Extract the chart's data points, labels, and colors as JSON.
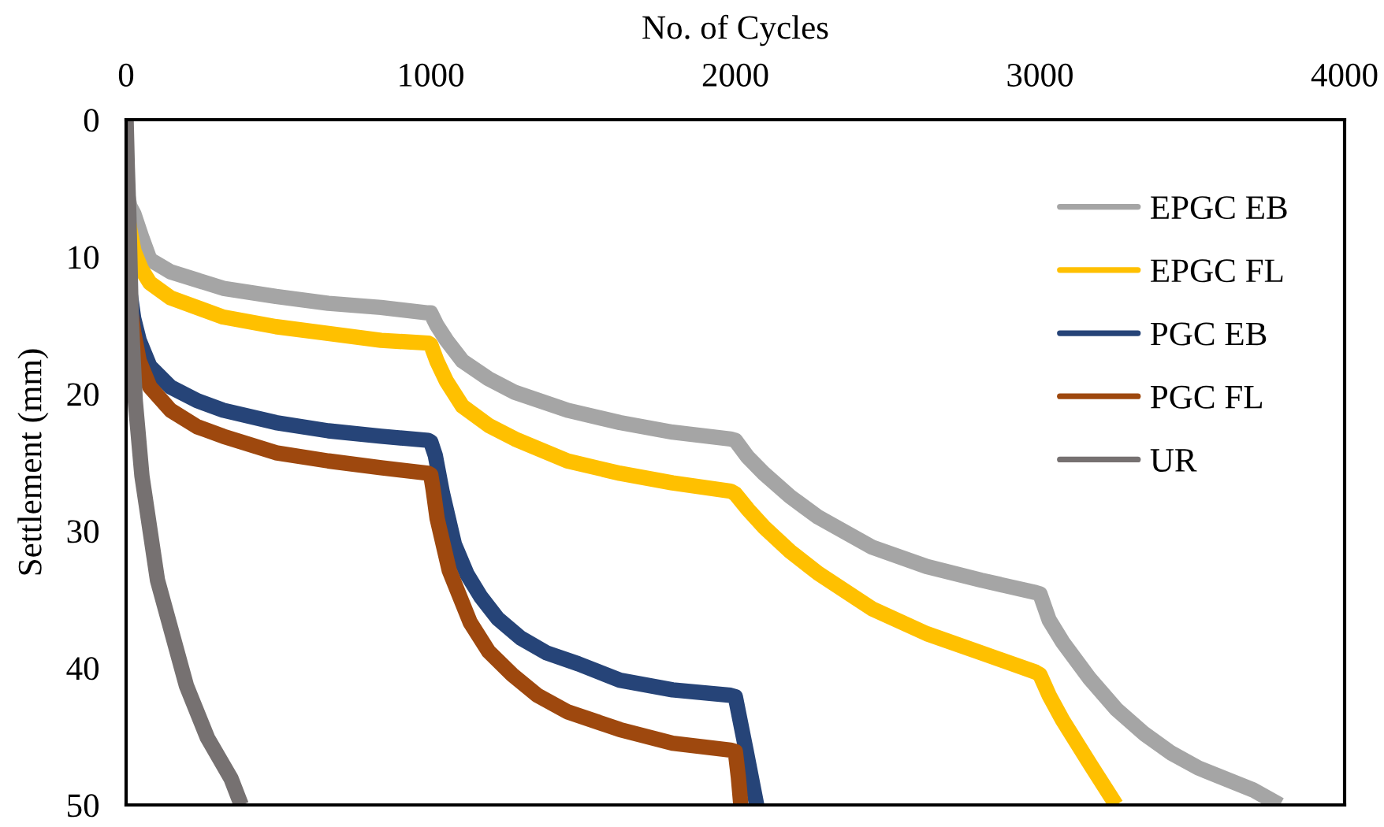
{
  "chart_data": {
    "type": "line",
    "xlabel": "No. of Cycles",
    "ylabel": "Settlement (mm)",
    "xlim": [
      0,
      4000
    ],
    "xticks": [
      0,
      1000,
      2000,
      3000,
      4000
    ],
    "ylim": [
      50,
      0
    ],
    "yticks": [
      0,
      10,
      20,
      30,
      40,
      50
    ],
    "legend": "top right",
    "line_style": "solid",
    "series": [
      {
        "name": "EPGC EB",
        "color": "#a5a5a5",
        "x": [
          0,
          5,
          12,
          26,
          50,
          78,
          146,
          319,
          492,
          664,
          837,
          992,
          1000,
          1020,
          1052,
          1104,
          1190,
          1277,
          1449,
          1621,
          1794,
          1984,
          2000,
          2040,
          2093,
          2180,
          2272,
          2450,
          2628,
          2807,
          2985,
          3000,
          3030,
          3074,
          3164,
          3250,
          3342,
          3430,
          3520,
          3699,
          3788
        ],
        "values": [
          4.5,
          5.5,
          6.3,
          6.9,
          8.5,
          10.2,
          11.1,
          12.3,
          12.9,
          13.4,
          13.7,
          14.1,
          14.1,
          15.0,
          16.1,
          17.6,
          18.9,
          19.9,
          21.2,
          22.1,
          22.8,
          23.3,
          23.4,
          24.6,
          25.8,
          27.5,
          29.0,
          31.2,
          32.6,
          33.6,
          34.5,
          34.6,
          36.5,
          38.1,
          40.8,
          43.0,
          44.8,
          46.2,
          47.3,
          48.9,
          50.0
        ]
      },
      {
        "name": "EPGC FL",
        "color": "#ffc000",
        "x": [
          0,
          5,
          12,
          26,
          50,
          78,
          146,
          319,
          492,
          664,
          837,
          992,
          1000,
          1020,
          1052,
          1104,
          1190,
          1277,
          1449,
          1621,
          1794,
          1984,
          2000,
          2040,
          2093,
          2180,
          2272,
          2450,
          2628,
          2807,
          2985,
          3000,
          3030,
          3074,
          3164,
          3250
        ],
        "values": [
          6.0,
          7.0,
          8.0,
          9.6,
          10.9,
          11.9,
          13.0,
          14.4,
          15.1,
          15.6,
          16.1,
          16.3,
          16.4,
          17.6,
          19.1,
          20.9,
          22.3,
          23.3,
          24.9,
          25.8,
          26.5,
          27.1,
          27.3,
          28.4,
          29.7,
          31.5,
          33.1,
          35.7,
          37.5,
          38.9,
          40.3,
          40.5,
          42.0,
          43.8,
          47.0,
          50.0
        ]
      },
      {
        "name": "PGC EB",
        "color": "#264478",
        "x": [
          0,
          5,
          12,
          25,
          43,
          78,
          146,
          233,
          319,
          492,
          664,
          837,
          992,
          1000,
          1015,
          1038,
          1078,
          1120,
          1164,
          1220,
          1294,
          1380,
          1484,
          1621,
          1794,
          1984,
          2000,
          2035,
          2070
        ],
        "values": [
          10.0,
          11.0,
          12.5,
          14.5,
          16.1,
          18.0,
          19.5,
          20.5,
          21.2,
          22.1,
          22.7,
          23.1,
          23.4,
          23.5,
          24.5,
          27.2,
          31.0,
          33.2,
          34.8,
          36.4,
          37.8,
          38.9,
          39.7,
          40.9,
          41.6,
          42.0,
          42.1,
          46.0,
          50.0
        ]
      },
      {
        "name": "PGC FL",
        "color": "#9e480e",
        "x": [
          0,
          5,
          12,
          25,
          43,
          78,
          146,
          233,
          319,
          492,
          664,
          837,
          992,
          1000,
          1008,
          1021,
          1061,
          1130,
          1190,
          1268,
          1350,
          1449,
          1621,
          1794,
          1984,
          2000,
          2010,
          2018
        ],
        "values": [
          11.0,
          12.0,
          13.5,
          15.5,
          17.6,
          19.5,
          21.2,
          22.4,
          23.1,
          24.3,
          24.9,
          25.4,
          25.8,
          25.9,
          27.0,
          29.1,
          32.9,
          36.7,
          38.8,
          40.5,
          42.0,
          43.2,
          44.5,
          45.5,
          46.0,
          46.1,
          48.0,
          50.0
        ]
      },
      {
        "name": "UR",
        "color": "#767171",
        "x": [
          0,
          4,
          9,
          17,
          30,
          52,
          103,
          198,
          267,
          345,
          378
        ],
        "values": [
          0.0,
          3.5,
          6.9,
          14.6,
          20.5,
          26.0,
          33.6,
          41.3,
          45.1,
          48.1,
          50.0
        ]
      }
    ]
  }
}
